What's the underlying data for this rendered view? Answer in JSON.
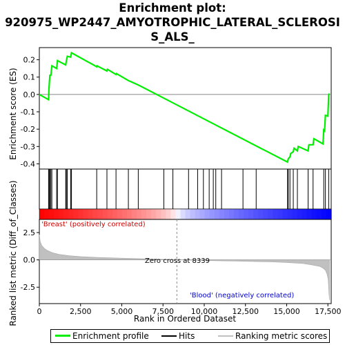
{
  "title_line1": "Enrichment plot:",
  "title_line2": "920975_WP2447_AMYOTROPHIC_LATERAL_SCLEROSI",
  "title_line3": "S_ALS_",
  "chart_data": {
    "type": "line",
    "n_genes": 17700,
    "es_panel": {
      "ylabel": "Enrichment score (ES)",
      "ylim": [
        -0.43,
        0.27
      ],
      "yticks": [
        "0.2",
        "0.1",
        "0.0",
        "-0.1",
        "-0.2",
        "-0.3",
        "-0.4"
      ],
      "ytick_values": [
        0.2,
        0.1,
        0.0,
        -0.1,
        -0.2,
        -0.3,
        -0.4
      ],
      "line_color": "#00ee00",
      "series": [
        {
          "x": [
            0,
            560,
            580,
            640,
            700,
            760,
            1050,
            1100,
            1600,
            1640,
            1700,
            1900,
            1950,
            3480,
            3500,
            4100,
            4130,
            4650,
            4680,
            5400,
            6000,
            15050,
            15100,
            15200,
            15250,
            15400,
            15450,
            15650,
            15700,
            16300,
            16350,
            16600,
            16650,
            17200,
            17250,
            17300,
            17350,
            17500,
            17550,
            17600
          ],
          "y": [
            0.0,
            -0.03,
            0.03,
            0.11,
            0.11,
            0.165,
            0.15,
            0.195,
            0.17,
            0.195,
            0.22,
            0.215,
            0.24,
            0.16,
            0.165,
            0.135,
            0.145,
            0.115,
            0.12,
            0.08,
            0.055,
            -0.39,
            -0.37,
            -0.36,
            -0.34,
            -0.33,
            -0.31,
            -0.325,
            -0.3,
            -0.325,
            -0.29,
            -0.29,
            -0.255,
            -0.285,
            -0.205,
            -0.21,
            -0.12,
            -0.125,
            0.0,
            0.005
          ]
        }
      ]
    },
    "hits": [
      560,
      600,
      640,
      700,
      760,
      1050,
      1100,
      1600,
      1640,
      1700,
      1900,
      1950,
      3480,
      4100,
      4650,
      5400,
      6000,
      7550,
      8100,
      9050,
      9600,
      9950,
      10300,
      10550,
      10700,
      11050,
      12350,
      13150,
      15050,
      15100,
      15200,
      15400,
      15650,
      16300,
      16600,
      17250,
      17350,
      17550
    ],
    "bar": {
      "label_pos": "'Breast' (positively correlated)",
      "label_neg": "'Blood' (negatively correlated)",
      "color_pos": "#ff0000",
      "color_neg": "#0000ff"
    },
    "metric_panel": {
      "ylabel": "Ranked list metric (Diff_of_Classes)",
      "ylim": [
        -4.0,
        3.7
      ],
      "yticks": [
        "2.5",
        "0.0",
        "-2.5"
      ],
      "ytick_values": [
        2.5,
        0.0,
        -2.5
      ],
      "x": [
        0,
        50,
        150,
        300,
        500,
        800,
        1200,
        1800,
        2500,
        3500,
        5000,
        7000,
        8339,
        10000,
        12000,
        14000,
        15000,
        16000,
        16500,
        17000,
        17200,
        17350,
        17450,
        17520,
        17560,
        17600
      ],
      "y": [
        2.3,
        1.7,
        1.3,
        1.05,
        0.85,
        0.65,
        0.5,
        0.38,
        0.3,
        0.22,
        0.15,
        0.08,
        0.0,
        -0.06,
        -0.12,
        -0.18,
        -0.24,
        -0.34,
        -0.45,
        -0.6,
        -0.75,
        -0.95,
        -1.3,
        -1.8,
        -3.0,
        -3.7
      ],
      "fill_color": "#c0c0c0"
    },
    "zero_cross_label": "Zero cross at 8339",
    "zero_cross": 8339,
    "xlabel": "Rank in Ordered Dataset",
    "xticks": [
      "0",
      "2,500",
      "5,000",
      "7,500",
      "10,000",
      "12,500",
      "15,000",
      "17,500"
    ],
    "xtick_values": [
      0,
      2500,
      5000,
      7500,
      10000,
      12500,
      15000,
      17500
    ],
    "legend": [
      {
        "label": "Enrichment profile",
        "color": "#00ee00"
      },
      {
        "label": "Hits",
        "color": "#000000"
      },
      {
        "label": "Ranking metric scores",
        "color": "#c0c0c0"
      }
    ]
  }
}
